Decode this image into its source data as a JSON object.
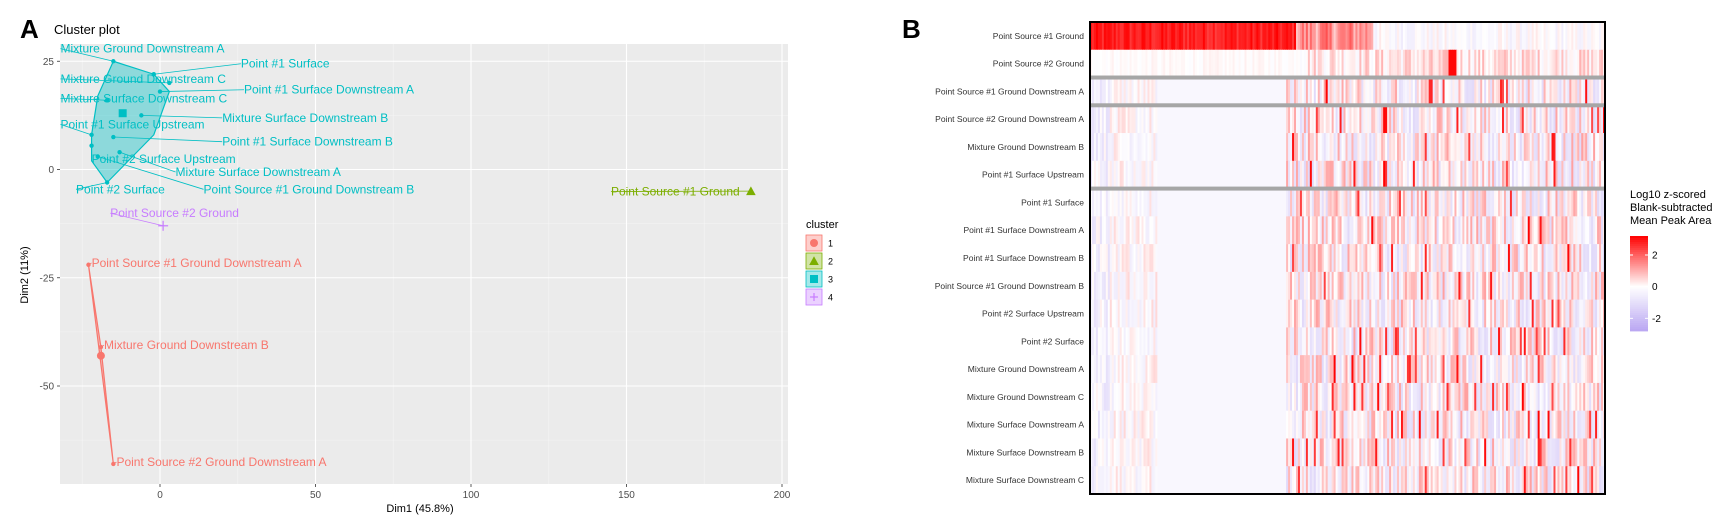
{
  "panels": {
    "a_label": "A",
    "b_label": "B"
  },
  "chart_data": [
    {
      "type": "scatter",
      "title": "Cluster plot",
      "xlabel": "Dim1 (45.8%)",
      "ylabel": "Dim2 (11%)",
      "xlim": [
        -35,
        205
      ],
      "ylim": [
        -73,
        28
      ],
      "xticks": [
        0,
        50,
        100,
        150,
        200
      ],
      "yticks": [
        25,
        0,
        -25,
        -50
      ],
      "grid": true,
      "legend_title": "cluster",
      "legend_position": "right",
      "clusters": [
        {
          "name": "1",
          "color": "#f8766d",
          "shape": "circle"
        },
        {
          "name": "2",
          "color": "#7cae00",
          "shape": "triangle"
        },
        {
          "name": "3",
          "color": "#00bfc4",
          "shape": "square"
        },
        {
          "name": "4",
          "color": "#c77cff",
          "shape": "cross"
        }
      ],
      "hulls": [
        {
          "cluster": "3",
          "points": [
            [
              -15,
              25
            ],
            [
              -2,
              22
            ],
            [
              3,
              18
            ],
            [
              -2,
              8
            ],
            [
              -17,
              -3
            ],
            [
              -22,
              2
            ],
            [
              -22,
              8
            ],
            [
              -20,
              17
            ]
          ]
        },
        {
          "cluster": "1",
          "points": [
            [
              -23,
              -22
            ],
            [
              -15,
              -68
            ],
            [
              -19,
              -41
            ]
          ]
        }
      ],
      "centroids": [
        {
          "cluster": "3",
          "x": -12,
          "y": 13
        },
        {
          "cluster": "1",
          "x": -19,
          "y": -43
        }
      ],
      "points": [
        {
          "label": "Mixture Ground Downstream A",
          "cluster": "3",
          "x": -15,
          "y": 25,
          "lx": -32,
          "ly": 27
        },
        {
          "label": "Point #1 Surface",
          "cluster": "3",
          "x": -2,
          "y": 22,
          "lx": 26,
          "ly": 23.5
        },
        {
          "label": "Mixture Ground Downstream C",
          "cluster": "3",
          "x": 3,
          "y": 20,
          "lx": -32,
          "ly": 20
        },
        {
          "label": "Point #1 Surface Downstream A",
          "cluster": "3",
          "x": 0,
          "y": 18,
          "lx": 27,
          "ly": 17.5
        },
        {
          "label": "Mixture Surface Downstream C",
          "cluster": "3",
          "x": -17,
          "y": 16,
          "lx": -32,
          "ly": 15.5
        },
        {
          "label": "Mixture Surface Downstream B",
          "cluster": "3",
          "x": -6,
          "y": 12.5,
          "lx": 20,
          "ly": 11
        },
        {
          "label": "Point #1 Surface Upstream",
          "cluster": "3",
          "x": -22,
          "y": 8,
          "lx": -32,
          "ly": 9.5
        },
        {
          "label": "Point #1 Surface Downstream B",
          "cluster": "3",
          "x": -15,
          "y": 7.5,
          "lx": 20,
          "ly": 5.5
        },
        {
          "label": "Point #2 Surface Upstream",
          "cluster": "3",
          "x": -22,
          "y": 5.5,
          "lx": -22,
          "ly": 1.5
        },
        {
          "label": "Mixture Surface Downstream A",
          "cluster": "3",
          "x": -13,
          "y": 4,
          "lx": 5,
          "ly": -1.5
        },
        {
          "label": "Point Source #1 Ground Downstream B",
          "cluster": "3",
          "x": -20,
          "y": 3,
          "lx": 14,
          "ly": -5.5
        },
        {
          "label": "Point #2 Surface",
          "cluster": "3",
          "x": -17,
          "y": -3,
          "lx": -27,
          "ly": -5.5
        },
        {
          "label": "Point Source #1 Ground",
          "cluster": "2",
          "x": 190,
          "y": -5,
          "lx": 145,
          "ly": -6
        },
        {
          "label": "Point Source #2 Ground",
          "cluster": "4",
          "x": 1,
          "y": -13,
          "lx": -16,
          "ly": -11
        },
        {
          "label": "Point Source #1 Ground Downstream A",
          "cluster": "1",
          "x": -23,
          "y": -22,
          "lx": -22,
          "ly": -22.5
        },
        {
          "label": "Mixture Ground Downstream B",
          "cluster": "1",
          "x": -19,
          "y": -41,
          "lx": -18,
          "ly": -41.5
        },
        {
          "label": "Point Source #2 Ground Downstream A",
          "cluster": "1",
          "x": -15,
          "y": -68,
          "lx": -14,
          "ly": -68.5
        }
      ]
    },
    {
      "type": "heatmap",
      "rows": [
        "Point Source #1 Ground",
        "Point Source #2 Ground",
        "Point Source #1 Ground Downstream A",
        "Point Source #2 Ground Downstream A",
        "Mixture Ground Downstream B",
        "Point #1 Surface Upstream",
        "Point #1 Surface",
        "Point #1 Surface Downstream A",
        "Point #1 Surface Downstream B",
        "Point Source #1 Ground Downstream B",
        "Point #2 Surface Upstream",
        "Point #2 Surface",
        "Mixture Ground Downstream A",
        "Mixture Ground Downstream C",
        "Mixture Surface Downstream A",
        "Mixture Surface Downstream B",
        "Mixture Surface Downstream C"
      ],
      "row_group_breaks_after": [
        1,
        2,
        5
      ],
      "colorbar": {
        "title_lines": [
          "Log10 z-scored",
          "Blank-subtracted",
          "Mean Peak Area"
        ],
        "ticks": [
          2,
          0,
          -2
        ],
        "range": [
          -2.8,
          3.2
        ],
        "low_color": "#b9a6f2",
        "mid_color": "#ffffff",
        "high_color": "#ff0000"
      }
    }
  ]
}
